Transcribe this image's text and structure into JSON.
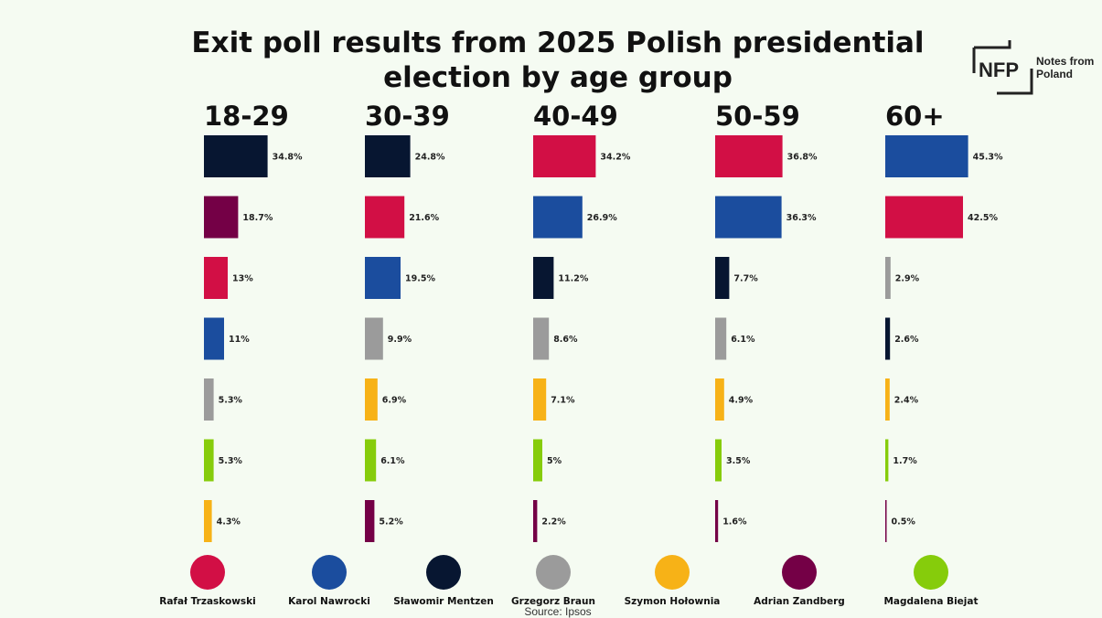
{
  "chart_data": {
    "type": "bar",
    "title": "Exit poll results from 2025 Polish presidential election by age group",
    "groups": [
      {
        "label": "18-29",
        "values": [
          {
            "candidate": "Sławomir Mentzen",
            "value": 34.8,
            "label": "34.8%"
          },
          {
            "candidate": "Adrian Zandberg",
            "value": 18.7,
            "label": "18.7%"
          },
          {
            "candidate": "Rafał Trzaskowski",
            "value": 13,
            "label": "13%"
          },
          {
            "candidate": "Karol Nawrocki",
            "value": 11,
            "label": "11%"
          },
          {
            "candidate": "Grzegorz Braun",
            "value": 5.3,
            "label": "5.3%"
          },
          {
            "candidate": "Magdalena Biejat",
            "value": 5.3,
            "label": "5.3%"
          },
          {
            "candidate": "Szymon Hołownia",
            "value": 4.3,
            "label": "4.3%"
          }
        ]
      },
      {
        "label": "30-39",
        "values": [
          {
            "candidate": "Sławomir Mentzen",
            "value": 24.8,
            "label": "24.8%"
          },
          {
            "candidate": "Rafał Trzaskowski",
            "value": 21.6,
            "label": "21.6%"
          },
          {
            "candidate": "Karol Nawrocki",
            "value": 19.5,
            "label": "19.5%"
          },
          {
            "candidate": "Grzegorz Braun",
            "value": 9.9,
            "label": "9.9%"
          },
          {
            "candidate": "Szymon Hołownia",
            "value": 6.9,
            "label": "6.9%"
          },
          {
            "candidate": "Magdalena Biejat",
            "value": 6.1,
            "label": "6.1%"
          },
          {
            "candidate": "Adrian Zandberg",
            "value": 5.2,
            "label": "5.2%"
          }
        ]
      },
      {
        "label": "40-49",
        "values": [
          {
            "candidate": "Rafał Trzaskowski",
            "value": 34.2,
            "label": "34.2%"
          },
          {
            "candidate": "Karol Nawrocki",
            "value": 26.9,
            "label": "26.9%"
          },
          {
            "candidate": "Sławomir Mentzen",
            "value": 11.2,
            "label": "11.2%"
          },
          {
            "candidate": "Grzegorz Braun",
            "value": 8.6,
            "label": "8.6%"
          },
          {
            "candidate": "Szymon Hołownia",
            "value": 7.1,
            "label": "7.1%"
          },
          {
            "candidate": "Magdalena Biejat",
            "value": 5,
            "label": "5%"
          },
          {
            "candidate": "Adrian Zandberg",
            "value": 2.2,
            "label": "2.2%"
          }
        ]
      },
      {
        "label": "50-59",
        "values": [
          {
            "candidate": "Rafał Trzaskowski",
            "value": 36.8,
            "label": "36.8%"
          },
          {
            "candidate": "Karol Nawrocki",
            "value": 36.3,
            "label": "36.3%"
          },
          {
            "candidate": "Sławomir Mentzen",
            "value": 7.7,
            "label": "7.7%"
          },
          {
            "candidate": "Grzegorz Braun",
            "value": 6.1,
            "label": "6.1%"
          },
          {
            "candidate": "Szymon Hołownia",
            "value": 4.9,
            "label": "4.9%"
          },
          {
            "candidate": "Magdalena Biejat",
            "value": 3.5,
            "label": "3.5%"
          },
          {
            "candidate": "Adrian Zandberg",
            "value": 1.6,
            "label": "1.6%"
          }
        ]
      },
      {
        "label": "60+",
        "values": [
          {
            "candidate": "Karol Nawrocki",
            "value": 45.3,
            "label": "45.3%"
          },
          {
            "candidate": "Rafał Trzaskowski",
            "value": 42.5,
            "label": "42.5%"
          },
          {
            "candidate": "Grzegorz Braun",
            "value": 2.9,
            "label": "2.9%"
          },
          {
            "candidate": "Sławomir Mentzen",
            "value": 2.6,
            "label": "2.6%"
          },
          {
            "candidate": "Szymon Hołownia",
            "value": 2.4,
            "label": "2.4%"
          },
          {
            "candidate": "Magdalena Biejat",
            "value": 1.7,
            "label": "1.7%"
          },
          {
            "candidate": "Adrian Zandberg",
            "value": 0.5,
            "label": "0.5%"
          }
        ]
      }
    ],
    "legend": [
      {
        "name": "Rafał Trzaskowski",
        "color": "#d20f45"
      },
      {
        "name": "Karol Nawrocki",
        "color": "#1b4d9e"
      },
      {
        "name": "Sławomir Mentzen",
        "color": "#071631"
      },
      {
        "name": "Grzegorz Braun",
        "color": "#9b9b9b"
      },
      {
        "name": "Szymon Hołownia",
        "color": "#f7b217"
      },
      {
        "name": "Adrian Zandberg",
        "color": "#740046"
      },
      {
        "name": "Magdalena Biejat",
        "color": "#86cc0b"
      }
    ],
    "legend_placement": "bottom",
    "grid": false
  },
  "source": "Source: Ipsos",
  "logo": {
    "mark": "NFP",
    "text_line1": "Notes from",
    "text_line2": "Poland"
  }
}
